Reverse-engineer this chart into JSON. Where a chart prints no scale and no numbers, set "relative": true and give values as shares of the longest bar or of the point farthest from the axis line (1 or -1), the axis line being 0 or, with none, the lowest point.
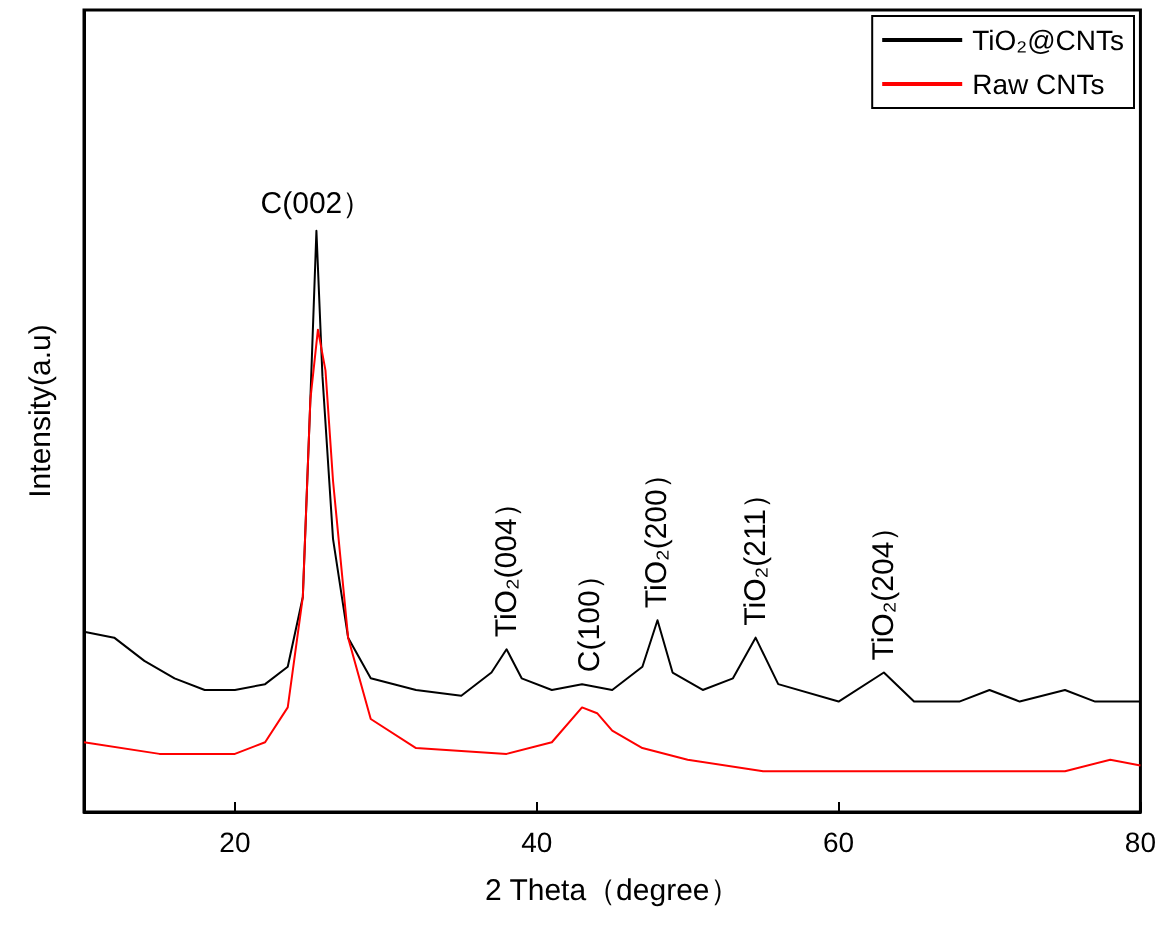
{
  "chart_data": {
    "type": "line",
    "relative": true,
    "xlabel": "2 Theta（degree）",
    "ylabel": "Intensity(a.u)",
    "xlim": [
      10,
      80
    ],
    "xticks": [
      20,
      40,
      60,
      80
    ],
    "grid": false,
    "legend": "top right",
    "marker": "none",
    "line_style": "solid",
    "series": [
      {
        "name": "TiO₂@CNTs",
        "color": "#000000",
        "x": [
          10,
          12,
          14,
          16,
          18,
          20,
          22,
          23.5,
          24.5,
          25,
          25.4,
          25.8,
          26.5,
          27.5,
          29,
          32,
          35,
          37,
          38,
          39,
          41,
          43,
          45,
          47,
          48,
          49,
          51,
          53,
          54.5,
          56,
          60,
          63,
          65,
          68,
          70,
          72,
          75,
          77,
          80
        ],
        "values": [
          0.31,
          0.3,
          0.26,
          0.23,
          0.21,
          0.21,
          0.22,
          0.25,
          0.37,
          0.71,
          1,
          0.75,
          0.47,
          0.3,
          0.23,
          0.21,
          0.2,
          0.24,
          0.28,
          0.23,
          0.21,
          0.22,
          0.21,
          0.25,
          0.33,
          0.24,
          0.21,
          0.23,
          0.3,
          0.22,
          0.19,
          0.24,
          0.19,
          0.19,
          0.21,
          0.19,
          0.21,
          0.19,
          0.19
        ]
      },
      {
        "name": "Raw CNTs",
        "color": "#ff0000",
        "x": [
          10,
          15,
          20,
          22,
          23.5,
          24.5,
          25,
          25.5,
          26,
          26.5,
          27.5,
          29,
          32,
          38,
          41,
          43,
          44,
          45,
          47,
          50,
          55,
          60,
          70,
          75,
          78,
          80
        ],
        "values": [
          0.12,
          0.1,
          0.1,
          0.12,
          0.18,
          0.37,
          0.71,
          0.83,
          0.76,
          0.57,
          0.3,
          0.16,
          0.11,
          0.1,
          0.12,
          0.18,
          0.17,
          0.14,
          0.11,
          0.09,
          0.07,
          0.07,
          0.07,
          0.07,
          0.09,
          0.08
        ]
      }
    ],
    "annotations": [
      {
        "text": "C(002）",
        "x": 25.4,
        "y": 1
      },
      {
        "text": "TiO₂(004）",
        "x": 38,
        "y": 0.28
      },
      {
        "text": "C(100）",
        "x": 43.5,
        "y": 0.22
      },
      {
        "text": "TiO₂(200）",
        "x": 48,
        "y": 0.33
      },
      {
        "text": "TiO₂(211）",
        "x": 54.5,
        "y": 0.3
      },
      {
        "text": "TiO₂(204）",
        "x": 63,
        "y": 0.24
      }
    ]
  }
}
